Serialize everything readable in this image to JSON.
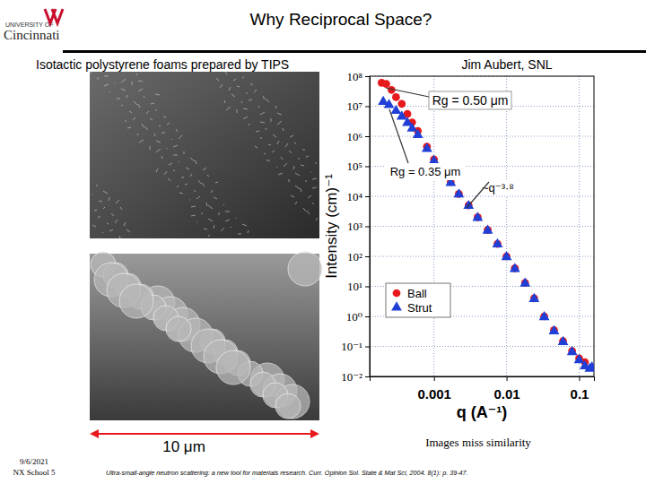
{
  "slide": {
    "title": "Why Reciprocal Space?",
    "logo": [
      "UNIVERSITY OF",
      "Cincinnati"
    ],
    "subtitle": "Isotactic polystyrene foams prepared by TIPS",
    "credit": "Jim Aubert, SNL",
    "scale_label": "10 μm",
    "caption": "Images miss similarity",
    "footer_date": "9/6/2021",
    "footer_event": "NX School 5",
    "citation": "Ultra-small-angle neutron scattering: a new tool for materials research. Curr. Opinion Sol. State & Mat Sci, 2004. 8(1): p. 39-47."
  },
  "chart_data": {
    "type": "scatter",
    "x_label": "q (A⁻¹)",
    "y_label": "Intensity (cm)⁻¹",
    "log": true,
    "grid": true,
    "legend": "lower-left",
    "xlim": [
      0.00013,
      0.16
    ],
    "ylim": [
      0.01,
      100000000
    ],
    "xticks": [
      0.001,
      0.01,
      0.1
    ],
    "yticks": [
      {
        "value": 100000000,
        "label": "10⁸"
      },
      {
        "value": 10000000,
        "label": "10⁷"
      },
      {
        "value": 1000000,
        "label": "10⁶"
      },
      {
        "value": 100000,
        "label": "10⁵"
      },
      {
        "value": 10000,
        "label": "10⁴"
      },
      {
        "value": 1000,
        "label": "10³"
      },
      {
        "value": 100,
        "label": "10²"
      },
      {
        "value": 10,
        "label": "10¹"
      },
      {
        "value": 1,
        "label": "10⁰"
      },
      {
        "value": 0.1,
        "label": "10⁻¹"
      },
      {
        "value": 0.01,
        "label": "10⁻²"
      }
    ],
    "annotations": [
      "Rg = 0.50 μm",
      "Rg = 0.35 μm",
      "~q⁻³·⁸"
    ],
    "series": [
      {
        "name": "Ball",
        "color": "#e8191c",
        "marker": "circle",
        "x": [
          0.00019,
          0.00022,
          0.00026,
          0.0003,
          0.00036,
          0.00043,
          0.0005,
          0.0006,
          0.0008,
          0.001,
          0.0013,
          0.0017,
          0.0022,
          0.003,
          0.004,
          0.0055,
          0.0075,
          0.01,
          0.013,
          0.018,
          0.024,
          0.033,
          0.045,
          0.06,
          0.08,
          0.1,
          0.12
        ],
        "values": [
          60000000,
          55000000,
          35000000,
          20000000,
          12000000,
          5500000,
          2900000,
          1500000,
          450000,
          170000,
          70000,
          30000,
          12000,
          5000,
          2000,
          750,
          260,
          100,
          40,
          13,
          4,
          1,
          0.35,
          0.15,
          0.07,
          0.04,
          0.03
        ]
      },
      {
        "name": "Strut",
        "color": "#1f3fd6",
        "marker": "triangle",
        "x": [
          0.0002,
          0.00024,
          0.0003,
          0.00036,
          0.00043,
          0.0005,
          0.0006,
          0.0008,
          0.001,
          0.0013,
          0.0017,
          0.0022,
          0.003,
          0.004,
          0.0055,
          0.0075,
          0.01,
          0.013,
          0.018,
          0.024,
          0.033,
          0.045,
          0.06,
          0.08,
          0.1,
          0.12,
          0.14,
          0.15
        ],
        "values": [
          14000000,
          11000000,
          7000000,
          4500000,
          2800000,
          1800000,
          1100000,
          380000,
          150000,
          65000,
          28000,
          11500,
          4800,
          1900,
          720,
          250,
          95,
          38,
          12.5,
          3.8,
          0.95,
          0.32,
          0.14,
          0.065,
          0.035,
          0.022,
          0.018,
          0.02
        ]
      }
    ]
  }
}
